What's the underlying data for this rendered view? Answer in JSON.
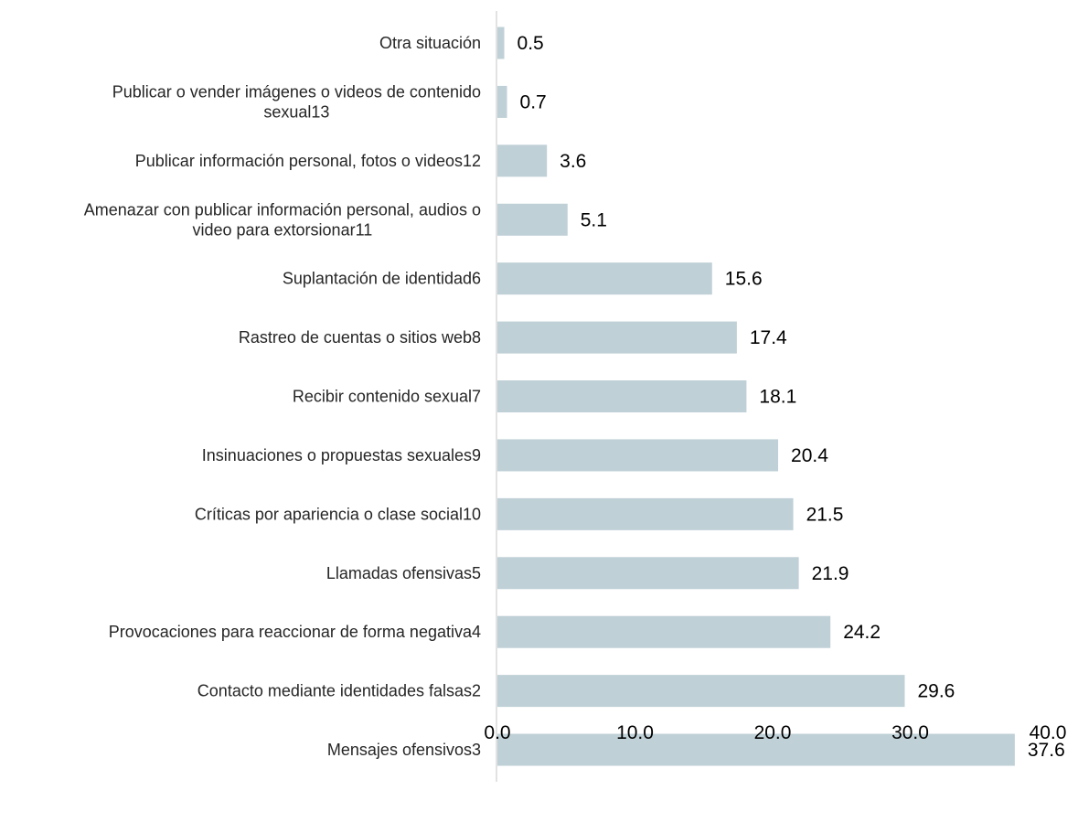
{
  "chart_data": {
    "type": "bar",
    "orientation": "horizontal",
    "title": "",
    "xlabel": "",
    "ylabel": "",
    "categories": [
      "Otra situación",
      "Publicar o vender imágenes o videos de contenido sexual13",
      "Publicar información personal, fotos o videos12",
      "Amenazar con publicar información personal, audios o video para extorsionar11",
      "Suplantación de identidad6",
      "Rastreo de cuentas o sitios web8",
      "Recibir contenido sexual7",
      "Insinuaciones o propuestas sexuales9",
      "Críticas por apariencia o clase social10",
      "Llamadas ofensivas5",
      "Provocaciones para reaccionar de forma negativa4",
      "Contacto mediante identidades falsas2",
      "Mensajes ofensivos3"
    ],
    "category_lines": [
      [
        "Otra situación"
      ],
      [
        "Publicar o vender imágenes o videos de contenido",
        "sexual13"
      ],
      [
        "Publicar información personal, fotos o videos12"
      ],
      [
        "Amenazar con publicar información personal, audios o",
        "video para extorsionar11"
      ],
      [
        "Suplantación de identidad6"
      ],
      [
        "Rastreo de cuentas o sitios web8"
      ],
      [
        "Recibir contenido sexual7"
      ],
      [
        "Insinuaciones o propuestas sexuales9"
      ],
      [
        "Críticas por apariencia o clase social10"
      ],
      [
        "Llamadas ofensivas5"
      ],
      [
        "Provocaciones para reaccionar de forma negativa4"
      ],
      [
        "Contacto mediante identidades falsas2"
      ],
      [
        "Mensajes ofensivos3"
      ]
    ],
    "values": [
      0.5,
      0.7,
      3.6,
      5.1,
      15.6,
      17.4,
      18.1,
      20.4,
      21.5,
      21.9,
      24.2,
      29.6,
      37.6
    ],
    "value_labels": [
      "0.5",
      "0.7",
      "3.6",
      "5.1",
      "15.6",
      "17.4",
      "18.1",
      "20.4",
      "21.5",
      "21.9",
      "24.2",
      "29.6",
      "37.6"
    ],
    "xlim": [
      0,
      40
    ],
    "ticks": [
      0,
      10,
      20,
      30,
      40
    ],
    "tick_labels": [
      "0.0",
      "10.0",
      "20.0",
      "30.0",
      "40.0"
    ],
    "grid": false,
    "legend": "none",
    "bar_color": "#bfd0d6",
    "axis_color": "#d9d9d9"
  }
}
